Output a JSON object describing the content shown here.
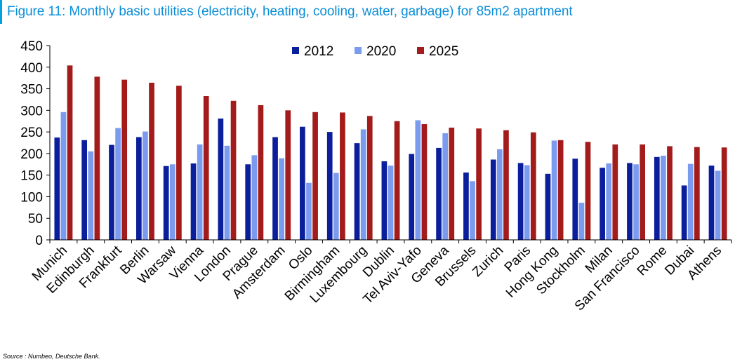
{
  "title": "Figure 11: Monthly basic utilities (electricity, heating, cooling, water, garbage) for 85m2 apartment",
  "source": "Source : Numbeo, Deutsche Bank.",
  "colors": {
    "title": "#0b8ed8",
    "accent_bar": "#00a3e0"
  },
  "chart_data": {
    "type": "bar",
    "categories": [
      "Munich",
      "Edinburgh",
      "Frankfurt",
      "Berlin",
      "Warsaw",
      "Vienna",
      "London",
      "Prague",
      "Amsterdam",
      "Oslo",
      "Birmingham",
      "Luxembourg",
      "Dublin",
      "Tel Aviv-Yafo",
      "Geneva",
      "Brussels",
      "Zurich",
      "Paris",
      "Hong Kong",
      "Stockholm",
      "Milan",
      "San Francisco",
      "Rome",
      "Dubai",
      "Athens"
    ],
    "series": [
      {
        "name": "2012",
        "color": "#0b1f9c",
        "values": [
          237,
          231,
          220,
          238,
          171,
          177,
          281,
          175,
          238,
          262,
          250,
          224,
          182,
          199,
          213,
          156,
          186,
          178,
          153,
          188,
          167,
          178,
          192,
          126,
          172
        ]
      },
      {
        "name": "2020",
        "color": "#7b9cee",
        "values": [
          296,
          205,
          259,
          251,
          175,
          221,
          218,
          196,
          189,
          132,
          155,
          256,
          172,
          277,
          247,
          136,
          210,
          173,
          230,
          86,
          177,
          175,
          195,
          176,
          160
        ]
      },
      {
        "name": "2025",
        "color": "#a31b1b",
        "values": [
          404,
          378,
          371,
          364,
          357,
          333,
          322,
          312,
          300,
          296,
          295,
          287,
          275,
          268,
          260,
          258,
          254,
          249,
          231,
          227,
          221,
          221,
          217,
          215,
          214
        ]
      }
    ],
    "ylim": [
      0,
      450
    ],
    "yticks": [
      0,
      50,
      100,
      150,
      200,
      250,
      300,
      350,
      400,
      450
    ],
    "xlabel": "",
    "ylabel": "",
    "legend": "top-center",
    "grid": false
  }
}
